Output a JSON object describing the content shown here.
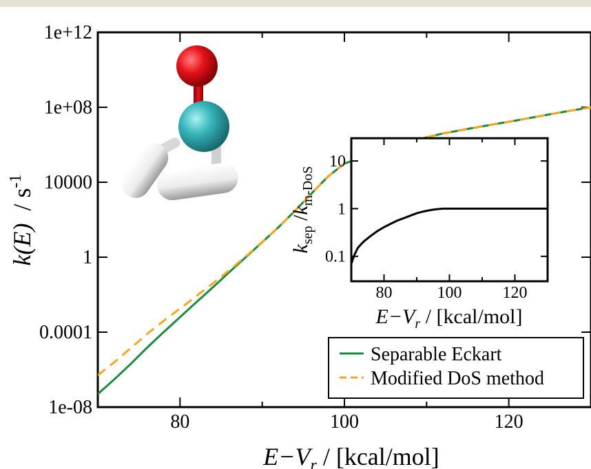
{
  "chart_data": [
    {
      "type": "line",
      "xlabel_parts": {
        "prefix": "E−V",
        "sub": "r",
        "suffix": " / [kcal/mol]"
      },
      "ylabel_parts": {
        "main": "k(E)",
        "unit_prefix": "  / s",
        "unit_sup": "-1"
      },
      "y_scale": "log",
      "xlim": [
        70,
        130
      ],
      "ylim": [
        1e-08,
        1000000000000.0
      ],
      "x_ticks": [
        80,
        100,
        120
      ],
      "x_tick_labels": [
        "80",
        "100",
        "120"
      ],
      "y_ticks": [
        1e-08,
        0.0001,
        1,
        10000,
        100000000.0,
        1000000000000.0
      ],
      "y_tick_labels": [
        "1e-08",
        "0.0001",
        "1",
        "10000",
        "1e+08",
        "1e+12"
      ],
      "legend_position": "bottom-right",
      "series": [
        {
          "name": "Separable Eckart",
          "color": "#1a8a3c",
          "style": "solid",
          "x": [
            70,
            72,
            74,
            76,
            78,
            80,
            82,
            84,
            86,
            88,
            90,
            92,
            94,
            96,
            98,
            100,
            102,
            104,
            106,
            108,
            110,
            112,
            115,
            118,
            121,
            124,
            127,
            130
          ],
          "y": [
            5e-08,
            3e-07,
            2e-06,
            1.5e-05,
            0.0001,
            0.00063,
            0.004,
            0.025,
            0.16,
            1,
            6.3,
            40,
            300,
            2500,
            20000,
            100000,
            200000,
            400000,
            700000,
            1300000,
            2500000,
            4000000,
            7000000,
            12000000,
            20000000,
            35000000,
            60000000,
            100000000
          ]
        },
        {
          "name": "Modified DoS method",
          "color": "#f5a623",
          "style": "dashed",
          "x": [
            70,
            72,
            74,
            76,
            78,
            80,
            82,
            84,
            86,
            88,
            90,
            92,
            94,
            96,
            98,
            100,
            102,
            104,
            106,
            108,
            110,
            112,
            115,
            118,
            121,
            124,
            127,
            130
          ],
          "y": [
            5e-07,
            2.5e-06,
            1.4e-05,
            8e-05,
            0.0004,
            0.0018,
            0.0085,
            0.04,
            0.2,
            1.1,
            6.5,
            40,
            300,
            2500,
            20000,
            100000,
            200000,
            400000,
            700000,
            1300000,
            2500000,
            4000000,
            7000000,
            12000000,
            20000000,
            35000000,
            60000000,
            100000000
          ]
        }
      ]
    },
    {
      "type": "line",
      "position": "inset",
      "xlabel_parts": {
        "prefix": "E−V",
        "sub": "r",
        "suffix": " / [kcal/mol]"
      },
      "ylabel_parts": {
        "k1": "k",
        "sub1": "sep",
        "mid": " /",
        "k2": "k",
        "sub2": "m-DoS"
      },
      "y_scale": "log",
      "xlim": [
        70,
        130
      ],
      "ylim": [
        0.03,
        30
      ],
      "x_ticks": [
        80,
        100,
        120
      ],
      "x_tick_labels": [
        "80",
        "100",
        "120"
      ],
      "y_ticks": [
        0.1,
        1,
        10
      ],
      "y_tick_labels": [
        "0.1",
        "1",
        "10"
      ],
      "series": [
        {
          "color": "#000000",
          "style": "solid",
          "x": [
            70,
            71,
            72,
            73,
            74,
            76,
            78,
            80,
            82,
            84,
            86,
            88,
            90,
            92,
            94,
            96,
            98,
            100,
            105,
            110,
            115,
            120,
            125,
            130
          ],
          "y": [
            0.07,
            0.11,
            0.15,
            0.18,
            0.21,
            0.27,
            0.34,
            0.41,
            0.48,
            0.56,
            0.63,
            0.71,
            0.8,
            0.87,
            0.93,
            0.97,
            1.0,
            1.0,
            1.0,
            1.0,
            1.0,
            1.0,
            1.0,
            1.0
          ]
        }
      ]
    }
  ],
  "molecule_colors": {
    "oxygen": "#e8121a",
    "carbon": "#33b3b8",
    "hydrogen": "#ececec"
  }
}
